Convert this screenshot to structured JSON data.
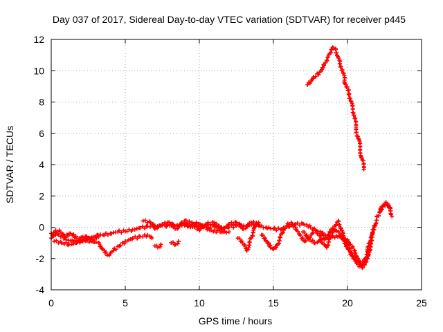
{
  "chart_data": {
    "type": "scatter",
    "title": "Day 037 of 2017, Sidereal Day-to-day VTEC variation (SDTVAR) for receiver p445",
    "xlabel": "GPS time / hours",
    "ylabel": "SDTVAR / TECUs",
    "xlim": [
      0,
      25
    ],
    "ylim": [
      -4,
      12
    ],
    "xticks": [
      0,
      5,
      10,
      15,
      20,
      25
    ],
    "yticks": [
      -4,
      -2,
      0,
      2,
      4,
      6,
      8,
      10,
      12
    ],
    "grid": true,
    "marker": "plus",
    "series": [
      {
        "name": "SDTVAR",
        "color": "#ff0000",
        "tracks": [
          [
            [
              0.0,
              -0.4
            ],
            [
              0.5,
              -0.5
            ],
            [
              1.0,
              -0.8
            ],
            [
              1.5,
              -0.9
            ],
            [
              2.0,
              -0.9
            ],
            [
              2.5,
              -0.7
            ],
            [
              3.0,
              -0.6
            ],
            [
              3.5,
              -0.5
            ],
            [
              4.0,
              -0.4
            ],
            [
              4.5,
              -0.3
            ],
            [
              5.0,
              -0.25
            ],
            [
              5.5,
              -0.15
            ],
            [
              6.0,
              -0.05
            ],
            [
              6.5,
              0.05
            ],
            [
              7.0,
              0.1
            ],
            [
              7.5,
              0.1
            ],
            [
              8.0,
              0.1
            ],
            [
              8.5,
              0.15
            ],
            [
              9.0,
              0.1
            ],
            [
              9.5,
              0.15
            ],
            [
              10.0,
              0.1
            ],
            [
              10.5,
              0.1
            ],
            [
              11.0,
              0.05
            ],
            [
              11.5,
              0.0
            ],
            [
              12.0,
              0.0
            ],
            [
              12.5,
              0.1
            ],
            [
              13.0,
              0.1
            ],
            [
              13.5,
              0.15
            ],
            [
              14.0,
              0.1
            ],
            [
              14.5,
              0.0
            ],
            [
              15.0,
              -0.1
            ],
            [
              15.5,
              -0.15
            ],
            [
              16.0,
              0.05
            ],
            [
              16.5,
              0.2
            ],
            [
              17.0,
              0.2
            ],
            [
              17.5,
              0.0
            ],
            [
              18.0,
              -0.3
            ],
            [
              18.5,
              -0.5
            ],
            [
              19.0,
              -0.6
            ],
            [
              19.5,
              -0.6
            ],
            [
              20.0,
              -0.8
            ],
            [
              20.5,
              -1.5
            ],
            [
              20.8,
              -2.2
            ],
            [
              21.0,
              -2.3
            ],
            [
              21.2,
              -2.0
            ],
            [
              21.5,
              -1.2
            ],
            [
              21.8,
              0.0
            ],
            [
              22.0,
              0.7
            ],
            [
              22.3,
              1.3
            ],
            [
              22.6,
              1.5
            ],
            [
              22.9,
              1.2
            ]
          ],
          [
            [
              0.2,
              -0.9
            ],
            [
              0.7,
              -1.0
            ],
            [
              1.2,
              -1.1
            ],
            [
              1.7,
              -1.0
            ],
            [
              2.2,
              -0.8
            ],
            [
              2.7,
              -0.9
            ],
            [
              3.2,
              -1.0
            ],
            [
              3.6,
              -1.5
            ],
            [
              3.9,
              -1.8
            ],
            [
              4.2,
              -1.5
            ],
            [
              4.6,
              -1.2
            ],
            [
              5.0,
              -0.9
            ],
            [
              5.5,
              -0.7
            ],
            [
              6.0,
              -0.6
            ],
            [
              6.5,
              -0.5
            ],
            [
              6.8,
              -0.7
            ]
          ],
          [
            [
              0.0,
              -0.7
            ],
            [
              0.3,
              -0.2
            ],
            [
              0.6,
              -0.3
            ],
            [
              0.9,
              -0.6
            ],
            [
              1.3,
              -0.4
            ],
            [
              1.8,
              -0.7
            ],
            [
              2.3,
              -0.6
            ],
            [
              2.8,
              -0.8
            ],
            [
              3.3,
              -0.5
            ]
          ],
          [
            [
              6.2,
              0.4
            ],
            [
              6.7,
              0.3
            ],
            [
              7.0,
              -0.1
            ],
            [
              7.5,
              0.2
            ],
            [
              8.0,
              0.3
            ],
            [
              8.5,
              -0.1
            ],
            [
              9.0,
              0.4
            ],
            [
              9.5,
              0.3
            ],
            [
              10.0,
              -0.2
            ],
            [
              10.5,
              0.2
            ],
            [
              11.0,
              0.3
            ],
            [
              11.5,
              -0.2
            ],
            [
              12.0,
              0.2
            ],
            [
              12.5,
              0.3
            ],
            [
              13.0,
              -0.1
            ],
            [
              13.5,
              0.3
            ],
            [
              14.0,
              0.2
            ]
          ],
          [
            [
              12.6,
              -0.7
            ],
            [
              12.9,
              -1.0
            ],
            [
              13.2,
              -1.5
            ],
            [
              13.5,
              -0.7
            ],
            [
              13.8,
              0.1
            ],
            [
              14.0,
              0.3
            ]
          ],
          [
            [
              14.2,
              -0.5
            ],
            [
              14.5,
              -0.9
            ],
            [
              14.8,
              -1.3
            ],
            [
              15.0,
              -1.4
            ],
            [
              15.3,
              -1.1
            ],
            [
              15.6,
              -0.4
            ],
            [
              15.9,
              0.1
            ],
            [
              16.2,
              0.3
            ],
            [
              16.5,
              0.0
            ],
            [
              16.8,
              -0.5
            ],
            [
              17.1,
              -0.9
            ],
            [
              17.4,
              -0.7
            ],
            [
              17.7,
              -0.2
            ],
            [
              18.0,
              -0.4
            ],
            [
              18.3,
              -1.0
            ],
            [
              18.6,
              -1.3
            ],
            [
              18.9,
              -0.6
            ],
            [
              19.2,
              0.1
            ],
            [
              19.4,
              0.4
            ],
            [
              19.7,
              -0.4
            ],
            [
              20.0,
              -1.2
            ],
            [
              20.3,
              -1.8
            ],
            [
              20.6,
              -2.1
            ],
            [
              20.9,
              -2.5
            ],
            [
              21.2,
              -2.1
            ],
            [
              21.5,
              -1.0
            ]
          ],
          [
            [
              17.0,
              -0.3
            ],
            [
              17.4,
              -0.8
            ],
            [
              17.8,
              -1.0
            ],
            [
              18.2,
              -0.8
            ],
            [
              18.6,
              -0.7
            ],
            [
              19.0,
              -0.1
            ],
            [
              19.4,
              -0.3
            ],
            [
              19.8,
              -0.9
            ],
            [
              20.2,
              -1.6
            ],
            [
              20.6,
              -2.3
            ],
            [
              21.0,
              -2.6
            ],
            [
              21.4,
              -1.8
            ],
            [
              21.8,
              0.1
            ]
          ],
          [
            [
              7.0,
              -1.2
            ],
            [
              7.2,
              -1.3
            ],
            [
              7.4,
              -1.1
            ]
          ],
          [
            [
              8.1,
              -1.0
            ],
            [
              8.4,
              -1.1
            ],
            [
              8.6,
              -0.9
            ]
          ],
          [
            [
              9.0,
              0.2
            ],
            [
              9.4,
              0.0
            ],
            [
              9.8,
              0.3
            ],
            [
              10.3,
              0.0
            ],
            [
              10.8,
              -0.2
            ],
            [
              11.4,
              -0.3
            ],
            [
              12.0,
              -0.3
            ]
          ],
          [
            [
              22.2,
              1.0
            ],
            [
              22.4,
              1.4
            ],
            [
              22.6,
              1.6
            ],
            [
              22.8,
              1.3
            ],
            [
              23.0,
              0.7
            ]
          ],
          [
            [
              17.3,
              9.1
            ],
            [
              17.7,
              9.6
            ],
            [
              18.1,
              9.9
            ],
            [
              18.5,
              10.5
            ],
            [
              18.8,
              11.1
            ],
            [
              19.0,
              11.5
            ],
            [
              19.2,
              11.4
            ],
            [
              19.5,
              10.6
            ],
            [
              19.8,
              9.4
            ],
            [
              20.1,
              8.5
            ],
            [
              20.4,
              7.3
            ],
            [
              20.7,
              5.8
            ],
            [
              21.0,
              4.3
            ],
            [
              21.1,
              3.7
            ]
          ]
        ]
      }
    ]
  }
}
